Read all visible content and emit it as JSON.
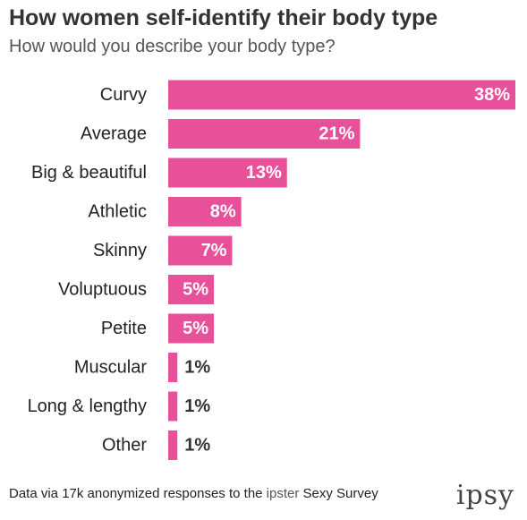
{
  "title": "How women self-identify their body type",
  "subtitle": "How would you describe your body type?",
  "footer": {
    "prefix": "Data via 17k anonymized responses to the ",
    "brand": "ipster",
    "suffix": " Sexy Survey"
  },
  "logo": "ipsy",
  "colors": {
    "bar": "#E8509A",
    "label_inside": "#ffffff",
    "label_outside": "#333333",
    "category_text": "#222222"
  },
  "chart_data": {
    "type": "bar",
    "orientation": "horizontal",
    "categories": [
      "Curvy",
      "Average",
      "Big & beautiful",
      "Athletic",
      "Skinny",
      "Voluptuous",
      "Petite",
      "Muscular",
      "Long & lengthy",
      "Other"
    ],
    "values": [
      38,
      21,
      13,
      8,
      7,
      5,
      5,
      1,
      1,
      1
    ],
    "value_labels": [
      "38%",
      "21%",
      "13%",
      "8%",
      "7%",
      "5%",
      "5%",
      "1%",
      "1%",
      "1%"
    ],
    "unit": "%",
    "xlim": [
      0,
      38
    ],
    "grid": false,
    "legend": "none"
  }
}
